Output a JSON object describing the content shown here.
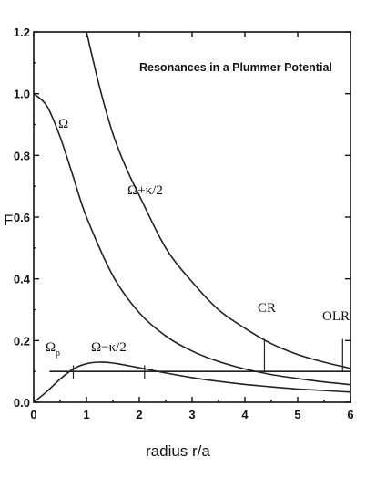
{
  "chart_data": {
    "type": "line",
    "title": "Resonances in a Plummer Potential",
    "xlabel": "radius  r/a",
    "ylabel": "F",
    "xlim": [
      0,
      6
    ],
    "ylim": [
      0,
      1.2
    ],
    "x_ticks": [
      "0",
      "1",
      "2",
      "3",
      "4",
      "5",
      "6"
    ],
    "y_ticks": [
      "0.0",
      "0.2",
      "0.4",
      "0.6",
      "0.8",
      "1.0",
      "1.2"
    ],
    "grid": false,
    "series": [
      {
        "name": "Ω",
        "x": [
          0,
          0.25,
          0.5,
          0.75,
          1,
          1.5,
          2,
          2.5,
          3,
          3.5,
          4,
          4.5,
          5,
          5.5,
          6
        ],
        "y": [
          1.0,
          0.96,
          0.86,
          0.73,
          0.6,
          0.41,
          0.29,
          0.215,
          0.166,
          0.132,
          0.108,
          0.09,
          0.077,
          0.066,
          0.057
        ]
      },
      {
        "name": "Ω+κ/2",
        "x": [
          1.0,
          1.25,
          1.5,
          1.75,
          2,
          2.5,
          3,
          3.5,
          4,
          4.5,
          5,
          5.5,
          6
        ],
        "y": [
          1.2,
          1.02,
          0.87,
          0.76,
          0.67,
          0.5,
          0.39,
          0.3,
          0.24,
          0.19,
          0.155,
          0.13,
          0.11
        ]
      },
      {
        "name": "Ω−κ/2",
        "x": [
          0,
          0.25,
          0.5,
          0.75,
          1,
          1.25,
          1.5,
          2,
          2.5,
          3,
          3.5,
          4,
          4.5,
          5,
          5.5,
          6
        ],
        "y": [
          0,
          0.035,
          0.075,
          0.108,
          0.125,
          0.13,
          0.127,
          0.112,
          0.095,
          0.08,
          0.068,
          0.058,
          0.05,
          0.043,
          0.038,
          0.033
        ]
      },
      {
        "name": "Ω",
        "name_subscript": "p",
        "x": [
          0.3,
          6
        ],
        "y": [
          0.1,
          0.1
        ]
      }
    ],
    "annotations": [
      {
        "text": "CR",
        "x": 4.37
      },
      {
        "text": "OLR",
        "x": 5.85
      }
    ],
    "resonance_marks_x": [
      0.75,
      2.1
    ]
  }
}
